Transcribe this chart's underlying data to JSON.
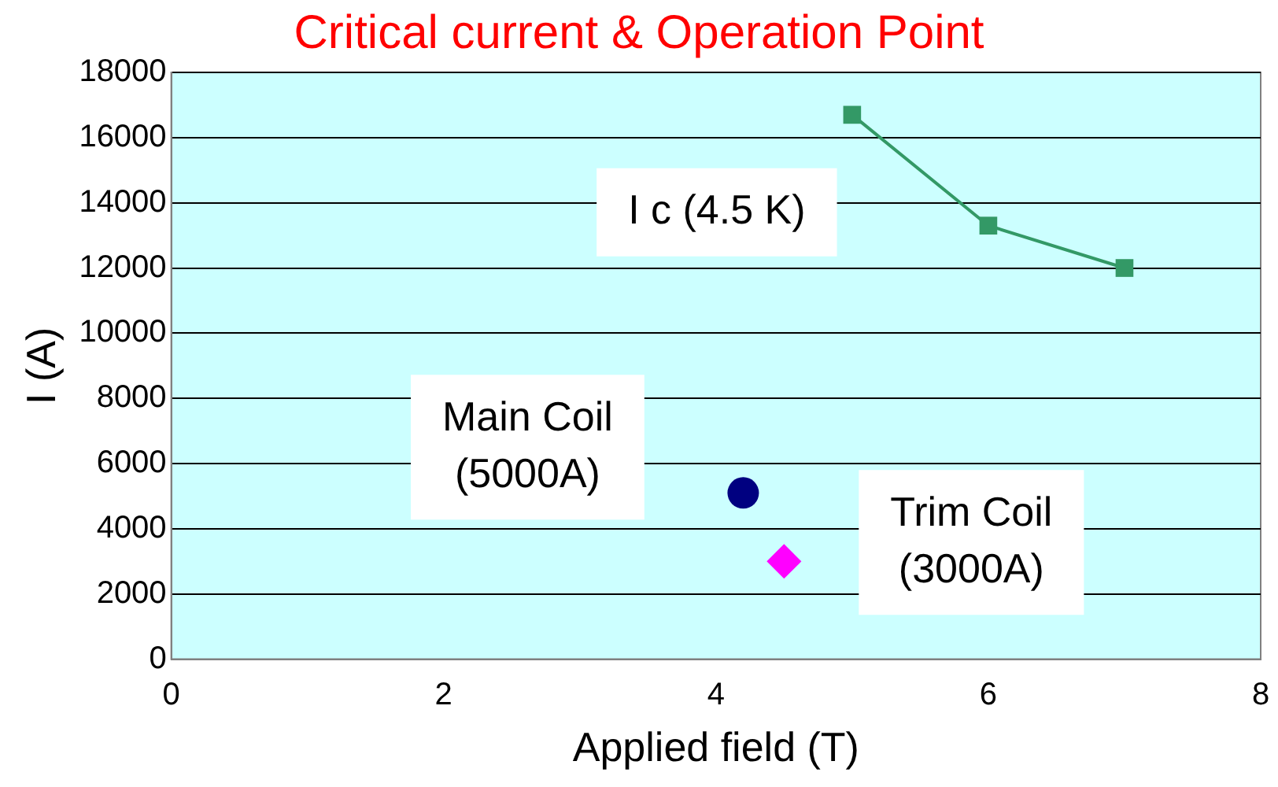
{
  "chart_data": {
    "type": "scatter",
    "title": "Critical current & Operation Point",
    "xlabel": "Applied field (T)",
    "ylabel": "I (A)",
    "xlim": [
      0,
      8
    ],
    "xticks": [
      0,
      2,
      4,
      6,
      8
    ],
    "ylim": [
      0,
      18000
    ],
    "yticks": [
      0,
      2000,
      4000,
      6000,
      8000,
      10000,
      12000,
      14000,
      16000,
      18000
    ],
    "grid": "y",
    "legend": false,
    "series": [
      {
        "name": "I c (4.5 K)",
        "type": "line",
        "marker": "square",
        "color": "#339966",
        "x": [
          5,
          6,
          7
        ],
        "values": [
          16700,
          13300,
          12000
        ]
      },
      {
        "name": "Main Coil (5000A)",
        "type": "scatter",
        "marker": "circle",
        "color": "#000080",
        "x": [
          4.2
        ],
        "values": [
          5100
        ]
      },
      {
        "name": "Trim Coil (3000A)",
        "type": "scatter",
        "marker": "diamond",
        "color": "#ff00ff",
        "x": [
          4.5
        ],
        "values": [
          3000
        ]
      }
    ]
  }
}
